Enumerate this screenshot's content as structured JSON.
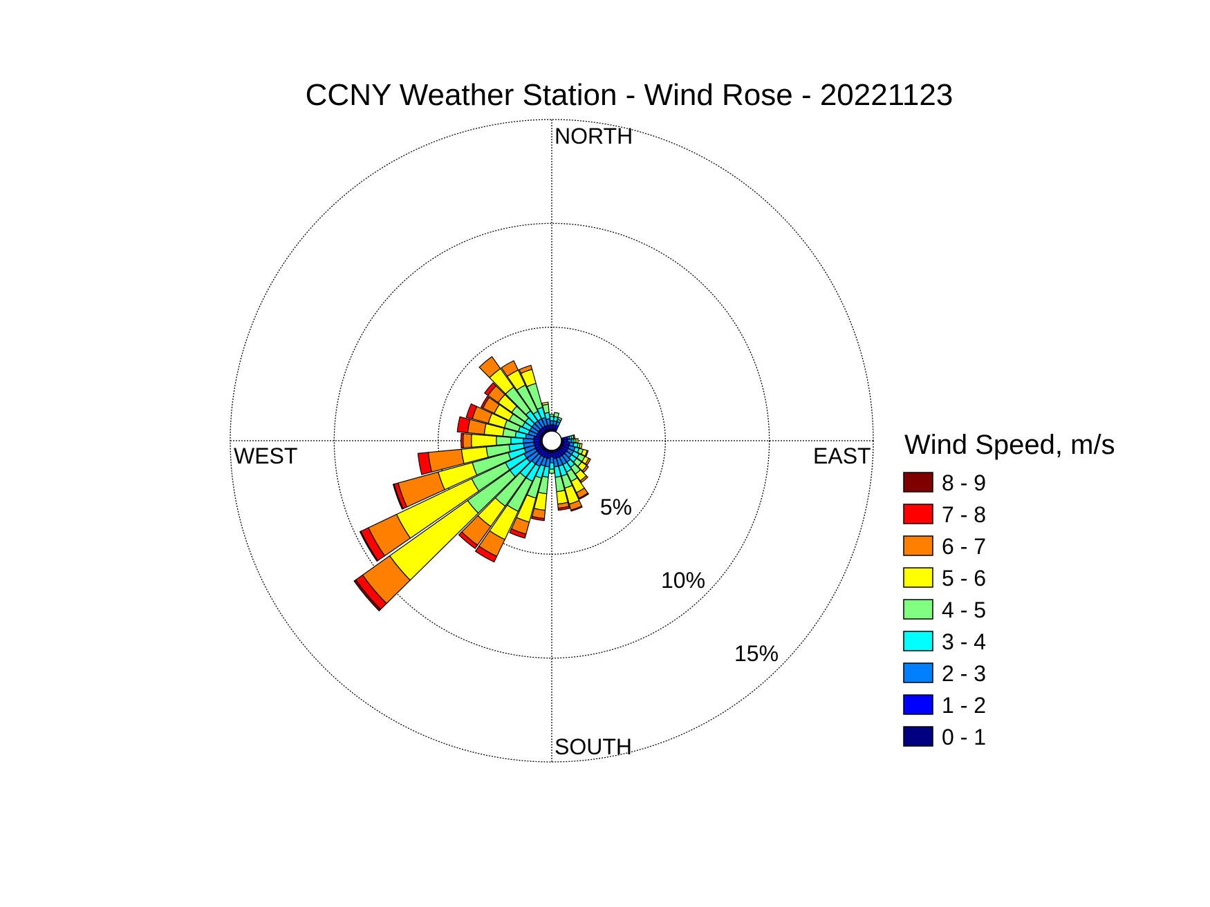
{
  "chart_data": {
    "type": "wind-rose",
    "title": "CCNY Weather Station - Wind Rose - 20221123",
    "direction_labels": {
      "north": "NORTH",
      "south": "SOUTH",
      "east": "EAST",
      "west": "WEST"
    },
    "ring_values": [
      5,
      10,
      15
    ],
    "ring_labels": [
      "5%",
      "10%",
      "15%"
    ],
    "max_ring": 15,
    "grid": true,
    "legend": {
      "title": "Wind Speed, m/s",
      "placement": "right",
      "items": [
        {
          "label": "8 - 9",
          "color": "#800000"
        },
        {
          "label": "7 - 8",
          "color": "#ff0000"
        },
        {
          "label": "6 - 7",
          "color": "#ff8000"
        },
        {
          "label": "5 - 6",
          "color": "#ffff00"
        },
        {
          "label": "4 - 5",
          "color": "#80ff80"
        },
        {
          "label": "3 - 4",
          "color": "#00ffff"
        },
        {
          "label": "2 - 3",
          "color": "#0080ff"
        },
        {
          "label": "1 - 2",
          "color": "#0000ff"
        },
        {
          "label": "0 - 1",
          "color": "#000080"
        }
      ]
    },
    "bin_order": [
      "0 - 1",
      "1 - 2",
      "2 - 3",
      "3 - 4",
      "4 - 5",
      "5 - 6",
      "6 - 7",
      "7 - 8",
      "8 - 9"
    ],
    "sector_width_deg": 10,
    "sectors": [
      {
        "direction": 0,
        "values": [
          0.1,
          0.2,
          0.2,
          0.2,
          0.1,
          0,
          0,
          0,
          0
        ]
      },
      {
        "direction": 10,
        "values": [
          0.1,
          0.2,
          0.2,
          0.2,
          0.2,
          0,
          0,
          0,
          0
        ]
      },
      {
        "direction": 20,
        "values": [
          0.1,
          0.2,
          0.2,
          0.1,
          0.1,
          0,
          0,
          0,
          0
        ]
      },
      {
        "direction": 80,
        "values": [
          0.1,
          0.2,
          0.1,
          0.1,
          0.1,
          0.05,
          0,
          0,
          0
        ]
      },
      {
        "direction": 90,
        "values": [
          0.1,
          0.2,
          0.2,
          0.1,
          0.1,
          0.1,
          0,
          0,
          0
        ]
      },
      {
        "direction": 100,
        "values": [
          0.1,
          0.3,
          0.2,
          0.2,
          0.1,
          0.1,
          0,
          0,
          0
        ]
      },
      {
        "direction": 110,
        "values": [
          0.1,
          0.3,
          0.3,
          0.2,
          0.2,
          0.2,
          0.05,
          0,
          0
        ]
      },
      {
        "direction": 120,
        "values": [
          0.1,
          0.3,
          0.3,
          0.3,
          0.3,
          0.2,
          0.1,
          0,
          0
        ]
      },
      {
        "direction": 130,
        "values": [
          0.1,
          0.3,
          0.3,
          0.3,
          0.3,
          0.3,
          0.1,
          0,
          0
        ]
      },
      {
        "direction": 140,
        "values": [
          0.1,
          0.3,
          0.4,
          0.3,
          0.4,
          0.4,
          0.1,
          0,
          0
        ]
      },
      {
        "direction": 150,
        "values": [
          0.1,
          0.3,
          0.4,
          0.4,
          0.5,
          0.6,
          0.3,
          0.05,
          0
        ]
      },
      {
        "direction": 160,
        "values": [
          0.1,
          0.3,
          0.4,
          0.5,
          0.6,
          0.8,
          0.3,
          0.05,
          0
        ]
      },
      {
        "direction": 170,
        "values": [
          0.1,
          0.3,
          0.4,
          0.5,
          0.7,
          0.6,
          0.2,
          0.1,
          0
        ]
      },
      {
        "direction": 180,
        "values": [
          0.1,
          0.2,
          0.3,
          0.3,
          0.2,
          0,
          0,
          0,
          0
        ]
      },
      {
        "direction": 190,
        "values": [
          0.1,
          0.3,
          0.4,
          0.5,
          0.8,
          0.8,
          0.4,
          0.1,
          0
        ]
      },
      {
        "direction": 200,
        "values": [
          0.1,
          0.3,
          0.4,
          0.6,
          1.0,
          1.2,
          0.6,
          0.2,
          0
        ]
      },
      {
        "direction": 210,
        "values": [
          0.1,
          0.3,
          0.5,
          0.8,
          1.6,
          1.5,
          0.9,
          0.3,
          0
        ]
      },
      {
        "direction": 220,
        "values": [
          0.1,
          0.3,
          0.5,
          0.8,
          1.7,
          1.2,
          1.1,
          0.2,
          0
        ]
      },
      {
        "direction": 230,
        "values": [
          0.1,
          0.3,
          0.6,
          1.0,
          2.5,
          4.6,
          1.6,
          0.4,
          0.1
        ]
      },
      {
        "direction": 240,
        "values": [
          0.1,
          0.3,
          0.6,
          1.0,
          1.8,
          4.0,
          1.5,
          0.4,
          0.05
        ]
      },
      {
        "direction": 250,
        "values": [
          0.1,
          0.3,
          0.5,
          0.8,
          1.8,
          1.7,
          2.0,
          0.2,
          0.05
        ]
      },
      {
        "direction": 260,
        "values": [
          0.1,
          0.3,
          0.5,
          0.7,
          1.1,
          1.2,
          1.6,
          0.5,
          0
        ]
      },
      {
        "direction": 270,
        "values": [
          0.1,
          0.3,
          0.5,
          0.6,
          0.7,
          1.2,
          0.4,
          0.1,
          0
        ]
      },
      {
        "direction": 280,
        "values": [
          0.1,
          0.3,
          0.4,
          0.5,
          0.6,
          0.9,
          0.8,
          0.5,
          0
        ]
      },
      {
        "direction": 290,
        "values": [
          0.1,
          0.2,
          0.4,
          0.5,
          0.7,
          0.8,
          0.8,
          0.3,
          0
        ]
      },
      {
        "direction": 300,
        "values": [
          0.1,
          0.2,
          0.4,
          0.4,
          0.7,
          0.8,
          0.6,
          0.1,
          0
        ]
      },
      {
        "direction": 310,
        "values": [
          0.1,
          0.2,
          0.4,
          0.4,
          0.8,
          0.8,
          0.6,
          0.2,
          0
        ]
      },
      {
        "direction": 320,
        "values": [
          0.1,
          0.2,
          0.4,
          0.6,
          1.4,
          1.1,
          0.7,
          0,
          0
        ]
      },
      {
        "direction": 330,
        "values": [
          0.1,
          0.2,
          0.4,
          0.4,
          1.4,
          0.8,
          0.5,
          0,
          0
        ]
      },
      {
        "direction": 340,
        "values": [
          0.1,
          0.2,
          0.4,
          0.5,
          1.2,
          0.7,
          0.2,
          0,
          0
        ]
      },
      {
        "direction": 350,
        "values": [
          0.1,
          0.2,
          0.3,
          0.3,
          0.4,
          0.1,
          0,
          0,
          0
        ]
      }
    ]
  }
}
